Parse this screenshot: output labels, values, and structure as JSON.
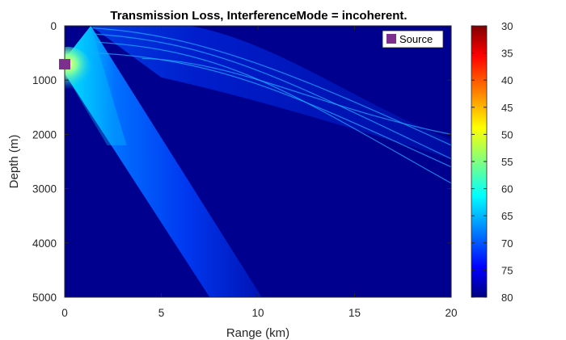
{
  "chart_data": {
    "type": "heatmap",
    "title": "Transmission Loss, InterferenceMode = incoherent.",
    "xlabel": "Range (km)",
    "ylabel": "Depth (m)",
    "xlim": [
      0,
      20
    ],
    "ylim": [
      0,
      5000
    ],
    "y_reversed": true,
    "xticks": [
      0,
      5,
      10,
      15,
      20
    ],
    "yticks": [
      0,
      1000,
      2000,
      3000,
      4000,
      5000
    ],
    "colorbar": {
      "colormap": "jet",
      "reversed": true,
      "clim": [
        30,
        80
      ],
      "ticks": [
        30,
        35,
        40,
        45,
        50,
        55,
        60,
        65,
        70,
        75,
        80
      ]
    },
    "legend": {
      "placement": "top-right",
      "entries": [
        {
          "label": "Source",
          "color": "#7e2f8e"
        }
      ]
    },
    "source": {
      "range_km": 0,
      "depth_m": 700
    },
    "grid": false
  }
}
